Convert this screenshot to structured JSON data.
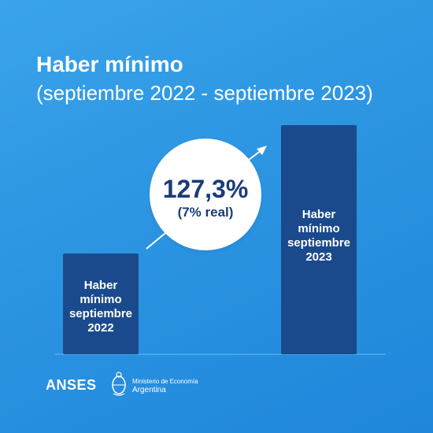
{
  "header": {
    "title": "Haber mínimo",
    "subtitle": "(septiembre 2022 - septiembre 2023)"
  },
  "badge": {
    "value": "127,3%",
    "sub": "(7% real)"
  },
  "chart_data": {
    "type": "bar",
    "categories": [
      "Haber mínimo septiembre 2022",
      "Haber mínimo septiembre 2023"
    ],
    "labels": [
      [
        "Haber",
        "mínimo",
        "septiembre",
        "2022"
      ],
      [
        "Haber",
        "mínimo",
        "septiembre",
        "2023"
      ]
    ],
    "values": [
      100,
      227.3
    ],
    "annotation": "127,3%",
    "annotation_sub": "(7% real)",
    "grid": false,
    "bar_color": "#1a4a8c",
    "axis_color": "#5ec0ff"
  },
  "footer": {
    "brand": "ANSES",
    "ministry_line1": "Ministerio de Economía",
    "ministry_line2": "Argentina"
  },
  "icons": [
    "arrow-up-right-icon",
    "seal-icon"
  ]
}
